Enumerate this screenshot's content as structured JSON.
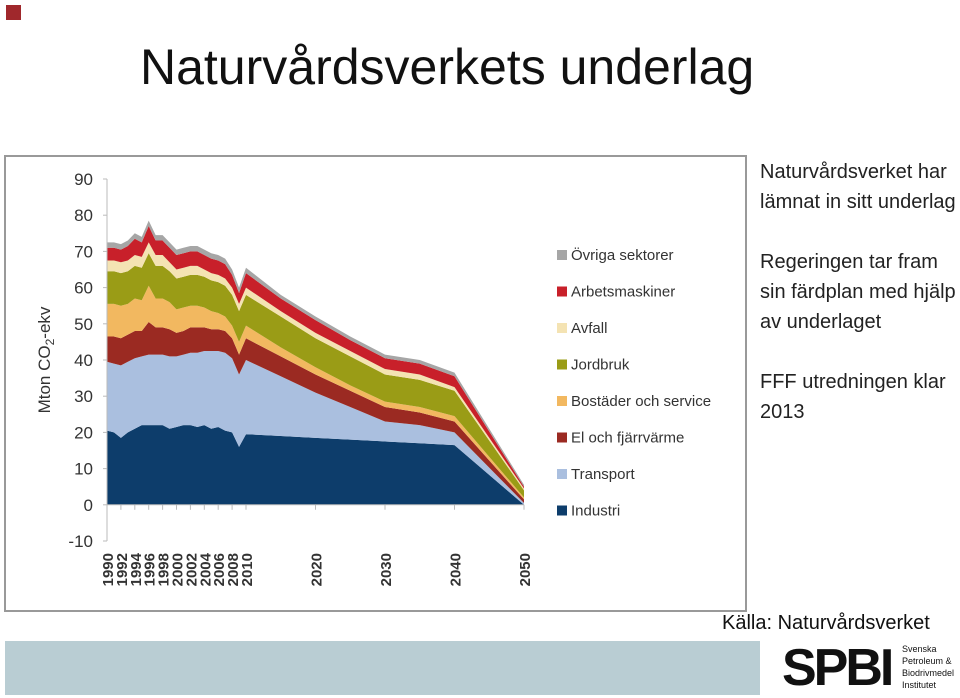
{
  "title": "Naturvårdsverkets underlag",
  "notes": [
    "Naturvårdsverket har lämnat in sitt underlag",
    "Regeringen tar fram sin färdplan med hjälp av underlaget",
    "FFF utredningen klar 2013"
  ],
  "source": "Källa: Naturvårdsverket",
  "logo": {
    "name": "SPBI",
    "lines": [
      "Svenska",
      "Petroleum &",
      "Biodrivmedel",
      "Institutet"
    ]
  },
  "chart_data": {
    "type": "stacked_area",
    "y_label": {
      "text": "Mton CO",
      "subscript": "2",
      "suffix": "-ekv"
    },
    "x": [
      1990,
      1991,
      1992,
      1993,
      1994,
      1995,
      1996,
      1997,
      1998,
      1999,
      2000,
      2001,
      2002,
      2003,
      2004,
      2005,
      2006,
      2007,
      2008,
      2009,
      2010,
      2015,
      2020,
      2025,
      2030,
      2035,
      2040,
      2050
    ],
    "xlim": [
      1990,
      2050
    ],
    "xticks": [
      1990,
      1992,
      1994,
      1996,
      1998,
      2000,
      2002,
      2004,
      2006,
      2008,
      2010,
      2020,
      2030,
      2040,
      2050
    ],
    "ylim": [
      -10,
      90
    ],
    "yticks": [
      -10,
      0,
      10,
      20,
      30,
      40,
      50,
      60,
      70,
      80,
      90
    ],
    "grid": false,
    "series": [
      {
        "name": "Industri",
        "color": "#0d3d6b",
        "values": [
          20.5,
          20,
          18.5,
          20,
          21,
          22,
          22,
          22,
          22,
          21,
          21.5,
          22,
          22,
          21.5,
          22,
          21,
          21.5,
          20.5,
          20,
          16,
          19.5,
          19,
          18.5,
          18,
          17.5,
          17,
          16.5,
          0
        ]
      },
      {
        "name": "Transport",
        "color": "#aabfdf",
        "values": [
          19,
          19,
          20,
          19.5,
          19.5,
          19,
          19.5,
          19.5,
          19.5,
          20,
          19.5,
          19.5,
          20,
          20.5,
          20.5,
          21.5,
          21,
          21.5,
          20.5,
          20,
          20.5,
          16.5,
          12.5,
          9,
          5.5,
          5,
          3.5,
          0.5
        ]
      },
      {
        "name": "El och fjärrvärme",
        "color": "#9b2a22",
        "values": [
          7,
          7.5,
          7.5,
          7.5,
          7.5,
          7,
          9,
          7.5,
          7.5,
          7.5,
          6.5,
          6.5,
          7,
          7,
          6.5,
          6,
          6,
          6,
          5.5,
          5.5,
          6,
          5.5,
          5,
          4.5,
          4,
          3.5,
          3,
          1
        ]
      },
      {
        "name": "Bostäder och service",
        "color": "#f2b860",
        "values": [
          9,
          9,
          9,
          8.5,
          9,
          8.5,
          10,
          8,
          8,
          7.5,
          6.5,
          6.5,
          6,
          6,
          5.5,
          5,
          4.5,
          4,
          3.5,
          3.5,
          3.5,
          2.5,
          2,
          1.5,
          1.5,
          1.5,
          1.5,
          0.5
        ]
      },
      {
        "name": "Jordbruk",
        "color": "#9a9c16",
        "values": [
          9,
          9,
          9,
          9,
          9,
          9,
          9,
          9,
          9,
          8.5,
          8.5,
          8.5,
          8.5,
          8.5,
          8.5,
          8.5,
          8.5,
          8.5,
          8.5,
          8.5,
          8.5,
          8.5,
          8,
          8,
          7.5,
          7.5,
          7,
          2
        ]
      },
      {
        "name": "Avfall",
        "color": "#f4e3b3",
        "values": [
          3,
          3,
          3,
          3,
          3,
          3,
          3,
          3,
          3,
          2.5,
          2.5,
          2.5,
          2.5,
          2.5,
          2,
          2,
          2,
          2,
          2,
          2,
          2,
          1.5,
          1.5,
          1.5,
          1.5,
          1.5,
          1,
          0.5
        ]
      },
      {
        "name": "Arbetsmaskiner",
        "color": "#c8202a",
        "values": [
          3.5,
          3.5,
          3.5,
          4,
          4.5,
          4,
          4.5,
          4,
          4,
          4,
          4,
          4,
          4,
          4,
          4,
          4,
          4,
          4,
          3.5,
          3,
          4,
          3.5,
          3.5,
          3,
          3,
          3,
          3,
          0.5
        ]
      },
      {
        "name": "Övriga sektorer",
        "color": "#a6a6a6",
        "values": [
          1.5,
          1.5,
          1.5,
          1.5,
          1.5,
          1.5,
          1.5,
          1.5,
          1.5,
          1.5,
          1.5,
          1.5,
          1.5,
          1.5,
          1.5,
          1.5,
          1.5,
          1.5,
          1.5,
          1.5,
          1.5,
          1,
          1,
          1,
          1,
          1,
          1,
          0.5
        ]
      }
    ]
  }
}
